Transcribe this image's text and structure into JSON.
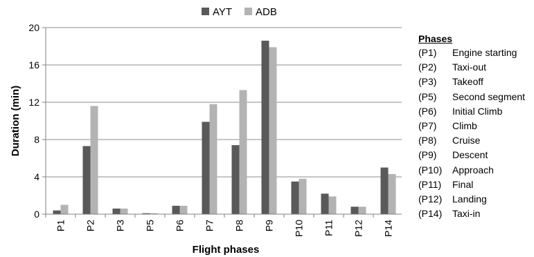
{
  "chart_data": {
    "type": "bar",
    "categories": [
      "P1",
      "P2",
      "P3",
      "P5",
      "P6",
      "P7",
      "P8",
      "P9",
      "P10",
      "P11",
      "P12",
      "P14"
    ],
    "series": [
      {
        "name": "AYT",
        "color": "#595959",
        "values": [
          0.4,
          7.3,
          0.6,
          0.1,
          0.9,
          9.9,
          7.4,
          18.6,
          3.5,
          2.2,
          0.8,
          5.0
        ]
      },
      {
        "name": "ADB",
        "color": "#b3b3b3",
        "values": [
          1.0,
          11.6,
          0.6,
          0.1,
          0.9,
          11.8,
          13.3,
          17.9,
          3.8,
          1.9,
          0.8,
          4.3
        ]
      }
    ],
    "xlabel": "Flight phases",
    "ylabel": "Duration (min)",
    "ylim": [
      0,
      20
    ],
    "yticks": [
      0,
      4,
      8,
      12,
      16,
      20
    ],
    "grid": true,
    "legend_position": "top"
  },
  "phases": {
    "title": "Phases",
    "items": [
      {
        "code": "(P1)",
        "name": "Engine starting"
      },
      {
        "code": "(P2)",
        "name": "Taxi-out"
      },
      {
        "code": "(P3)",
        "name": "Takeoff"
      },
      {
        "code": "(P5)",
        "name": "Second segment"
      },
      {
        "code": "(P6)",
        "name": "Initial Climb"
      },
      {
        "code": "(P7)",
        "name": "Climb"
      },
      {
        "code": "(P8)",
        "name": "Cruise"
      },
      {
        "code": "(P9)",
        "name": "Descent"
      },
      {
        "code": "(P10)",
        "name": "Approach"
      },
      {
        "code": "(P11)",
        "name": "Final"
      },
      {
        "code": "(P12)",
        "name": "Landing"
      },
      {
        "code": "(P14)",
        "name": "Taxi-in"
      }
    ]
  }
}
